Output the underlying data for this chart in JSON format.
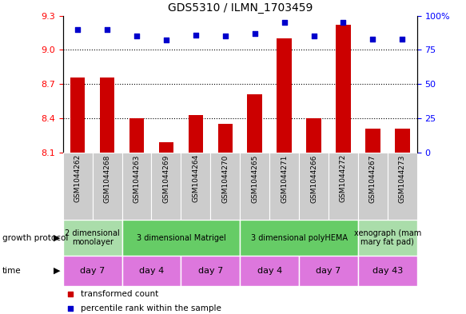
{
  "title": "GDS5310 / ILMN_1703459",
  "samples": [
    "GSM1044262",
    "GSM1044268",
    "GSM1044263",
    "GSM1044269",
    "GSM1044264",
    "GSM1044270",
    "GSM1044265",
    "GSM1044271",
    "GSM1044266",
    "GSM1044272",
    "GSM1044267",
    "GSM1044273"
  ],
  "bar_values": [
    8.76,
    8.76,
    8.4,
    8.19,
    8.43,
    8.35,
    8.61,
    9.1,
    8.4,
    9.22,
    8.31,
    8.31
  ],
  "dot_values": [
    90,
    90,
    85,
    82,
    86,
    85,
    87,
    95,
    85,
    95,
    83,
    83
  ],
  "bar_bottom": 8.1,
  "ylim_left": [
    8.1,
    9.3
  ],
  "ylim_right": [
    0,
    100
  ],
  "yticks_left": [
    8.1,
    8.4,
    8.7,
    9.0,
    9.3
  ],
  "yticks_right": [
    0,
    25,
    50,
    75,
    100
  ],
  "bar_color": "#cc0000",
  "dot_color": "#0000cc",
  "growth_protocol_groups": [
    {
      "label": "2 dimensional\nmonolayer",
      "start": 0,
      "end": 2,
      "color": "#aaddaa"
    },
    {
      "label": "3 dimensional Matrigel",
      "start": 2,
      "end": 6,
      "color": "#66cc66"
    },
    {
      "label": "3 dimensional polyHEMA",
      "start": 6,
      "end": 10,
      "color": "#66cc66"
    },
    {
      "label": "xenograph (mam\nmary fat pad)",
      "start": 10,
      "end": 12,
      "color": "#aaddaa"
    }
  ],
  "time_groups": [
    {
      "label": "day 7",
      "start": 0,
      "end": 2
    },
    {
      "label": "day 4",
      "start": 2,
      "end": 4
    },
    {
      "label": "day 7",
      "start": 4,
      "end": 6
    },
    {
      "label": "day 4",
      "start": 6,
      "end": 8
    },
    {
      "label": "day 7",
      "start": 8,
      "end": 10
    },
    {
      "label": "day 43",
      "start": 10,
      "end": 12
    }
  ],
  "time_color": "#dd77dd",
  "sample_bg_color": "#cccccc",
  "legend_items": [
    {
      "label": "transformed count",
      "color": "#cc0000"
    },
    {
      "label": "percentile rank within the sample",
      "color": "#0000cc"
    }
  ]
}
